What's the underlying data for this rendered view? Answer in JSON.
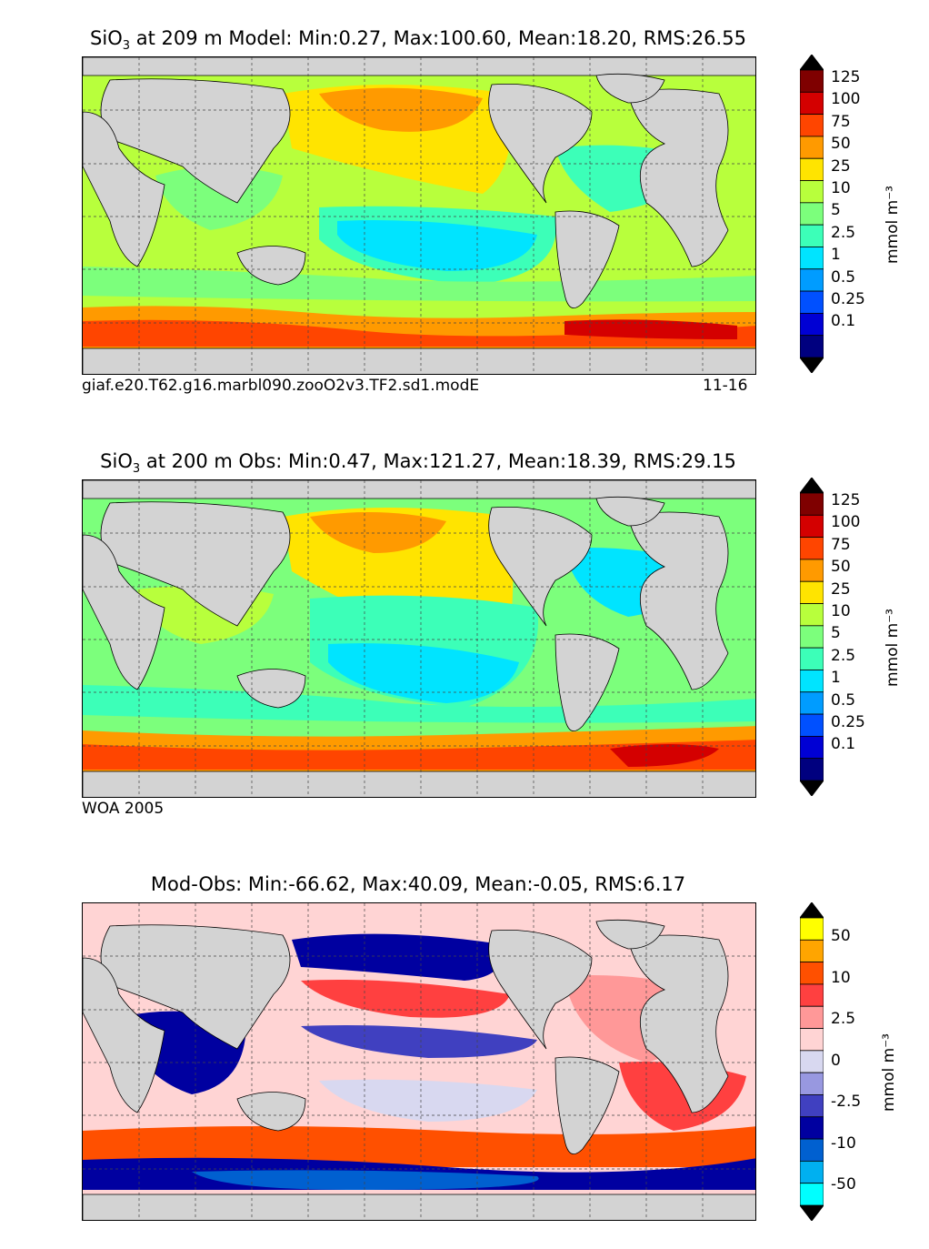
{
  "panels": [
    {
      "title_prefix": "SiO",
      "title_sub": "3",
      "title_rest": " at 209 m Model: Min:0.27, Max:100.60, Mean:18.20, RMS:26.55",
      "caption_left": "giaf.e20.T62.g16.marbl090.zooO2v3.TF2.sd1.modE",
      "caption_right": "11-16",
      "colorbar_label": "mmol m⁻³",
      "colorbar_ticks": [
        "125",
        "100",
        "75",
        "50",
        "25",
        "10",
        "5",
        "2.5",
        "1",
        "0.5",
        "0.25",
        "0.1"
      ],
      "colorbar_colors": [
        "#7f0000",
        "#d40000",
        "#ff4500",
        "#ff9a00",
        "#ffe400",
        "#b8ff3c",
        "#7cff7c",
        "#3cffb8",
        "#00e4ff",
        "#009cff",
        "#0050ff",
        "#0000d4",
        "#00007f"
      ]
    },
    {
      "title_prefix": "SiO",
      "title_sub": "3",
      "title_rest": " at 200 m Obs: Min:0.47, Max:121.27, Mean:18.39, RMS:29.15",
      "caption_left": "WOA 2005",
      "caption_right": "",
      "colorbar_label": "mmol m⁻³",
      "colorbar_ticks": [
        "125",
        "100",
        "75",
        "50",
        "25",
        "10",
        "5",
        "2.5",
        "1",
        "0.5",
        "0.25",
        "0.1"
      ],
      "colorbar_colors": [
        "#7f0000",
        "#d40000",
        "#ff4500",
        "#ff9a00",
        "#ffe400",
        "#b8ff3c",
        "#7cff7c",
        "#3cffb8",
        "#00e4ff",
        "#009cff",
        "#0050ff",
        "#0000d4",
        "#00007f"
      ]
    },
    {
      "title_prefix": "",
      "title_sub": "",
      "title_rest": "Mod-Obs: Min:-66.62, Max:40.09, Mean:-0.05, RMS:6.17",
      "caption_left": "",
      "caption_right": "",
      "colorbar_label": "mmol m⁻³",
      "colorbar_ticks": [
        "50",
        "10",
        "2.5",
        "0",
        "-2.5",
        "-10",
        "-50"
      ],
      "colorbar_colors": [
        "#ffff00",
        "#ffa500",
        "#ff5000",
        "#ff4040",
        "#ff9898",
        "#ffd4d4",
        "#d8d8f0",
        "#9898e0",
        "#4040c0",
        "#0000a0",
        "#0060d0",
        "#00b0f0",
        "#00ffff"
      ]
    }
  ],
  "colors": {
    "land": "#d3d3d3",
    "ice": "#ffffff",
    "coast": "#000000"
  }
}
